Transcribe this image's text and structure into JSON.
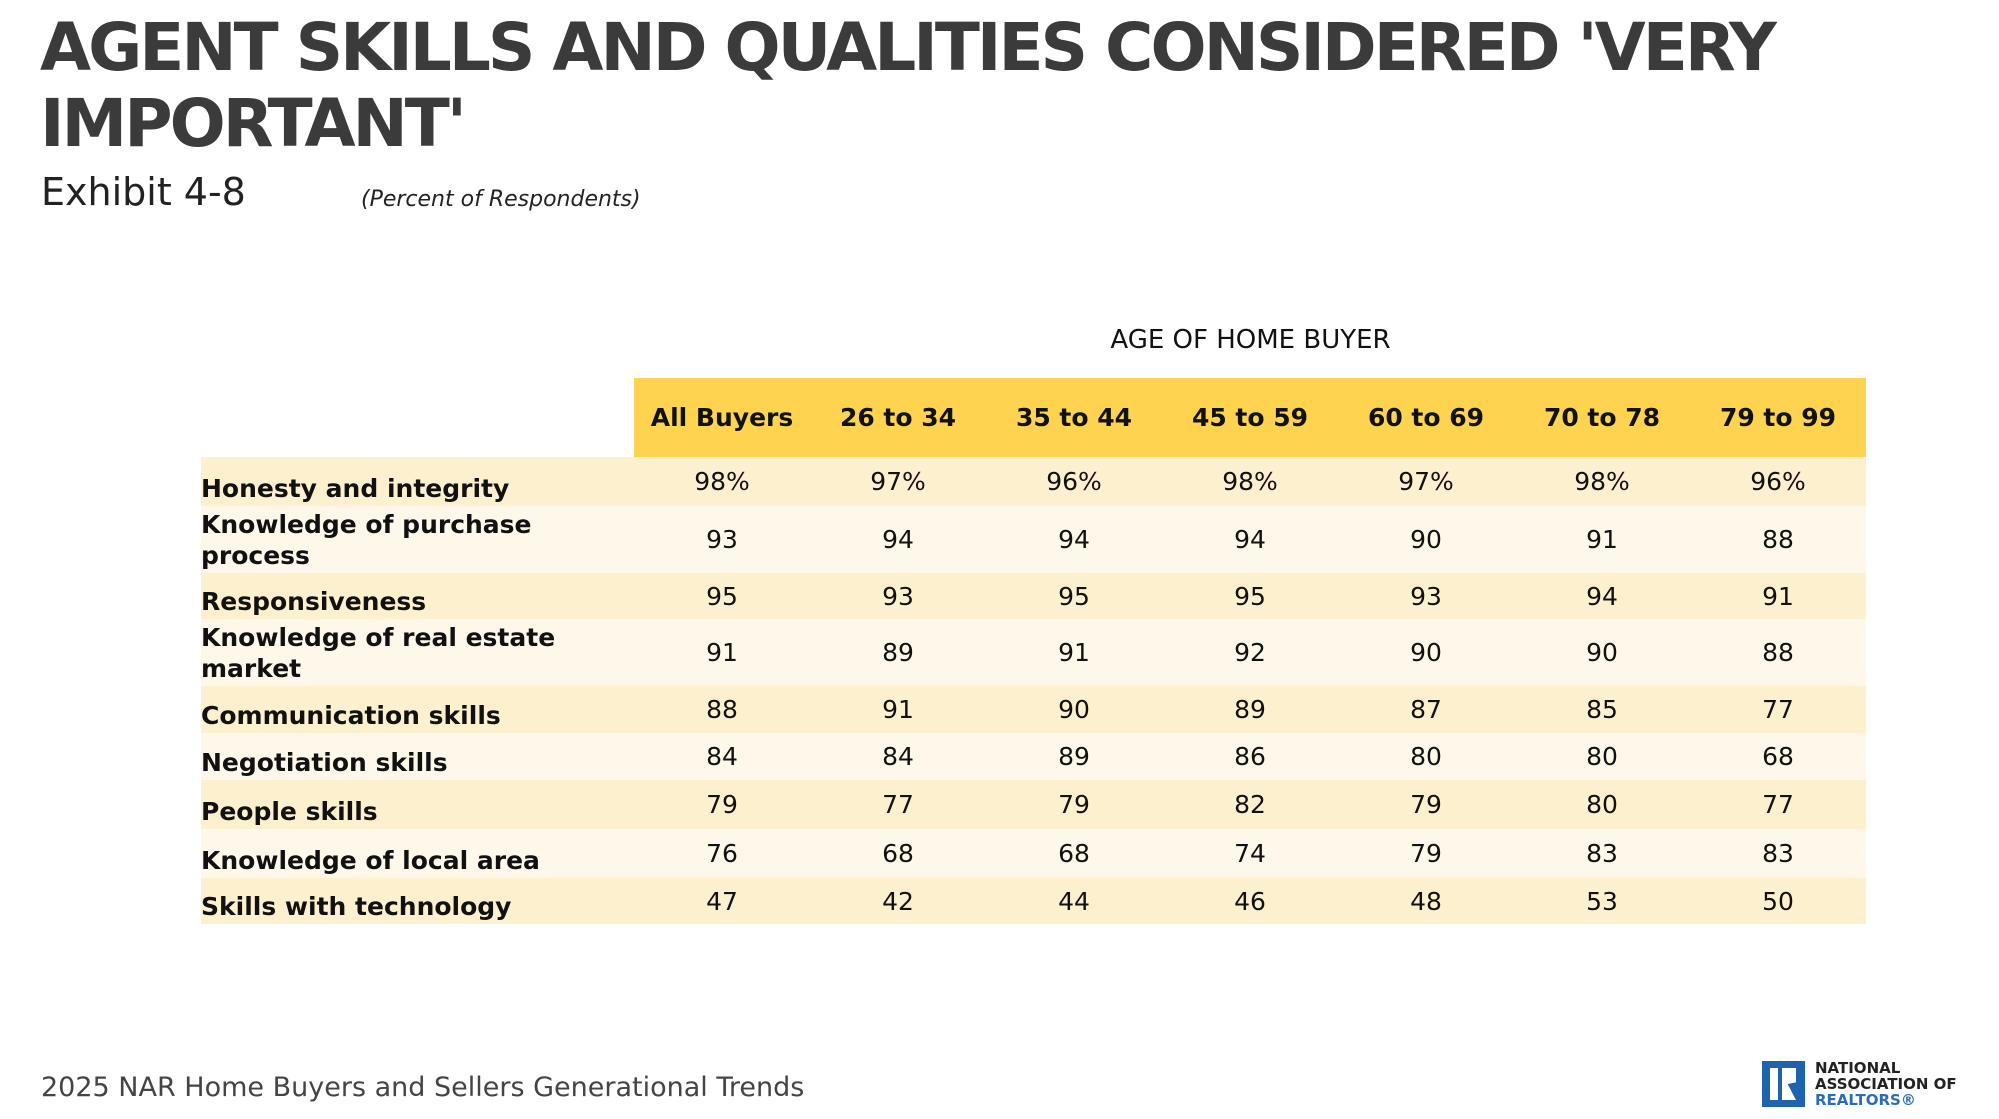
{
  "title": "AGENT SKILLS AND QUALITIES CONSIDERED 'VERY IMPORTANT'",
  "exhibit": "Exhibit 4-8",
  "subtitle": "(Percent of Respondents)",
  "group_label": "AGE OF HOME BUYER",
  "columns": [
    "All Buyers",
    "26 to 34",
    "35 to 44",
    "45 to 59",
    "60 to 69",
    "70 to 78",
    "79 to 99"
  ],
  "rows": [
    {
      "label": "Honesty and integrity",
      "values": [
        "98%",
        "97%",
        "96%",
        "98%",
        "97%",
        "98%",
        "96%"
      ]
    },
    {
      "label": "Knowledge of purchase process",
      "values": [
        "93",
        "94",
        "94",
        "94",
        "90",
        "91",
        "88"
      ]
    },
    {
      "label": "Responsiveness",
      "values": [
        "95",
        "93",
        "95",
        "95",
        "93",
        "94",
        "91"
      ]
    },
    {
      "label": "Knowledge of real estate market",
      "values": [
        "91",
        "89",
        "91",
        "92",
        "90",
        "90",
        "88"
      ]
    },
    {
      "label": "Communication skills",
      "values": [
        "88",
        "91",
        "90",
        "89",
        "87",
        "85",
        "77"
      ]
    },
    {
      "label": "Negotiation skills",
      "values": [
        "84",
        "84",
        "89",
        "86",
        "80",
        "80",
        "68"
      ]
    },
    {
      "label": "People skills",
      "values": [
        "79",
        "77",
        "79",
        "82",
        "79",
        "80",
        "77"
      ]
    },
    {
      "label": "Knowledge of local area",
      "values": [
        "76",
        "68",
        "68",
        "74",
        "79",
        "83",
        "83"
      ]
    },
    {
      "label": "Skills with technology",
      "values": [
        "47",
        "42",
        "44",
        "46",
        "48",
        "53",
        "50"
      ]
    }
  ],
  "footer": "2025 NAR Home Buyers and Sellers Generational Trends",
  "logo": {
    "line1": "NATIONAL",
    "line2": "ASSOCIATION OF",
    "line3": "REALTORS®"
  },
  "colors": {
    "header": "#fdd34f",
    "row_odd": "#fdf0cf",
    "row_even": "#fdf8ea",
    "logo_blue": "#1f63ad"
  }
}
